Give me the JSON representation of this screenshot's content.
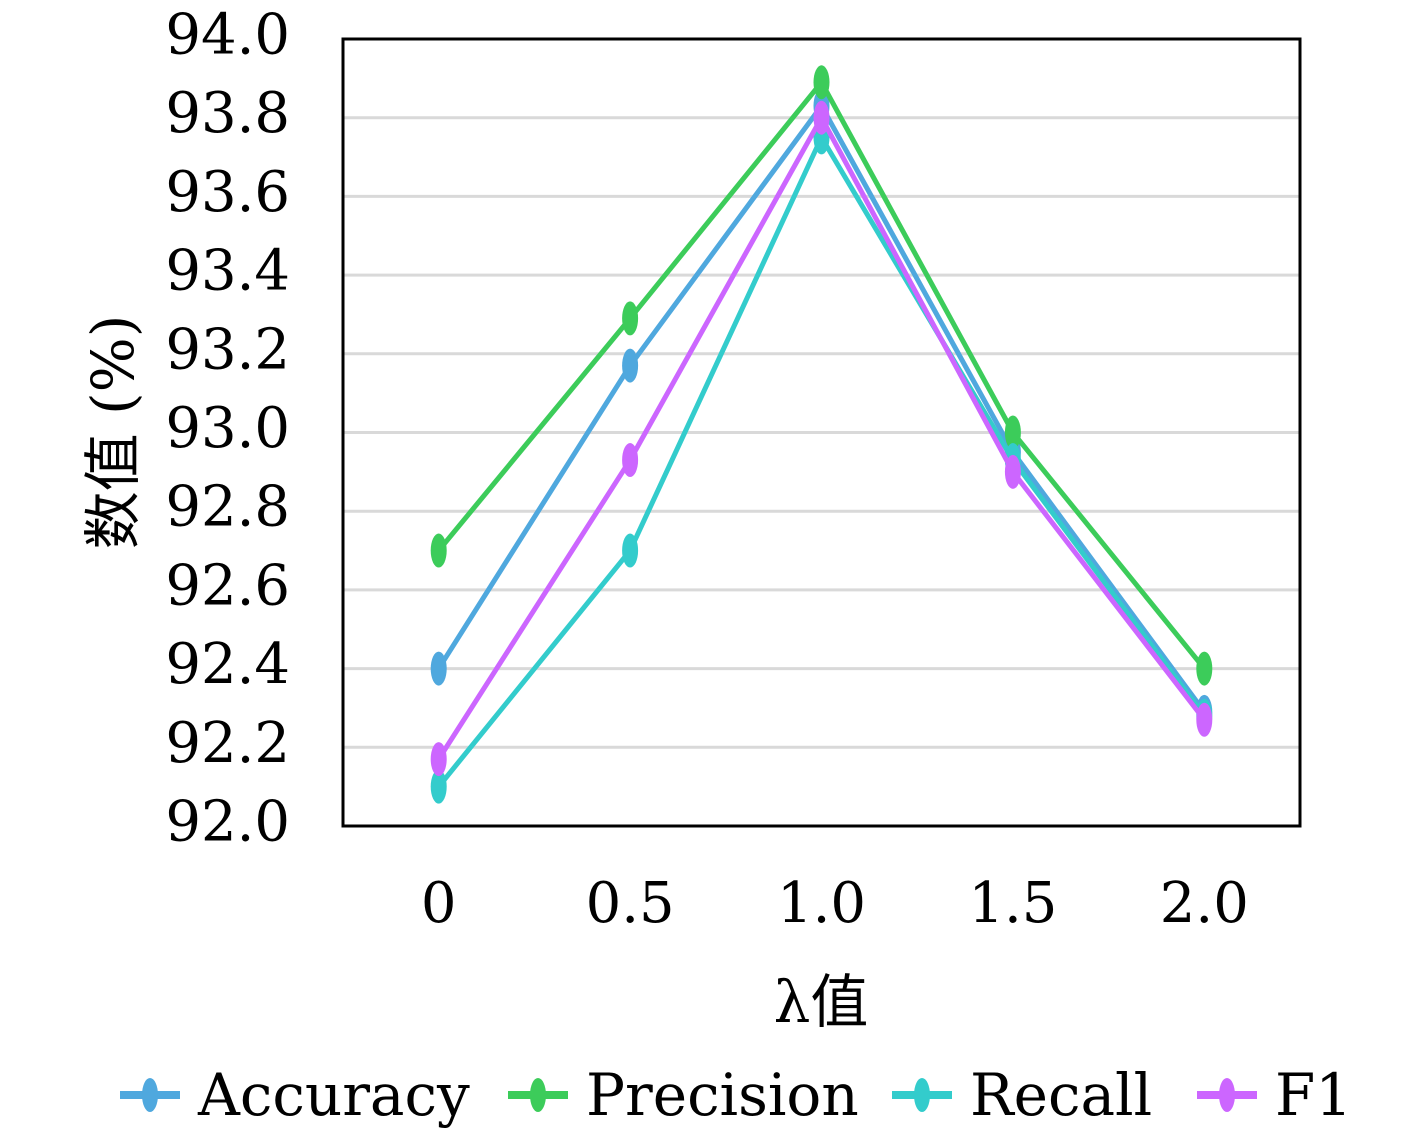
{
  "chart_data": {
    "type": "line",
    "categories": [
      "0",
      "0.5",
      "1.0",
      "1.5",
      "2.0"
    ],
    "ylabel": "数值 (%)",
    "xlabel": "λ值",
    "ylim": [
      92.0,
      94.0
    ],
    "yticks": [
      "92.0",
      "92.2",
      "92.4",
      "92.6",
      "92.8",
      "93.0",
      "93.2",
      "93.4",
      "93.6",
      "93.8",
      "94.0"
    ],
    "grid": true,
    "legend_position": "bottom",
    "series": [
      {
        "name": "Accuracy",
        "color": "#4fa8de",
        "values": [
          92.4,
          93.17,
          93.83,
          92.95,
          92.29
        ]
      },
      {
        "name": "Precision",
        "color": "#3ccc5a",
        "values": [
          92.7,
          93.29,
          93.89,
          93.0,
          92.4
        ]
      },
      {
        "name": "Recall",
        "color": "#33cccc",
        "values": [
          92.1,
          92.7,
          93.75,
          92.93,
          92.28
        ]
      },
      {
        "name": "F1",
        "color": "#cc66ff",
        "values": [
          92.17,
          92.93,
          93.8,
          92.9,
          92.27
        ]
      }
    ]
  }
}
